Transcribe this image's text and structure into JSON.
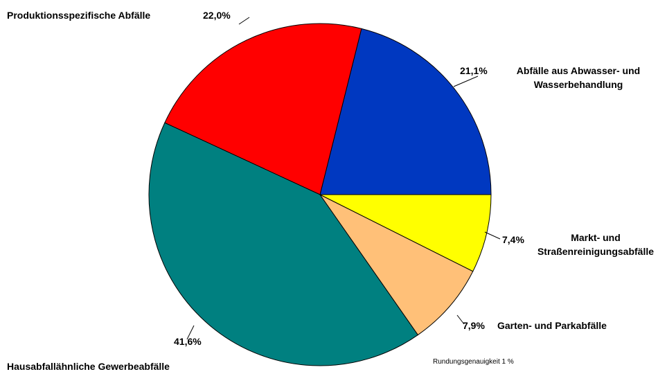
{
  "chart_data": {
    "type": "pie",
    "categories": [
      "Abfälle aus Abwasser- und\nWasserbehandlung",
      "Produktionsspezifische Abfälle",
      "Hausabfallähnliche Gewerbeabfälle",
      "Garten- und Parkabfälle",
      "Markt- und\nStraßenreinigungsabfälle"
    ],
    "values": [
      21.1,
      22.0,
      41.6,
      7.9,
      7.4
    ],
    "value_labels": [
      "21,1%",
      "22,0%",
      "41,6%",
      "7,9%",
      "7,4%"
    ],
    "colors": [
      "#0038c0",
      "#ff0000",
      "#008080",
      "#ffc078",
      "#ffff00"
    ],
    "note": "Rundungsgenauigkeit 1 %"
  }
}
